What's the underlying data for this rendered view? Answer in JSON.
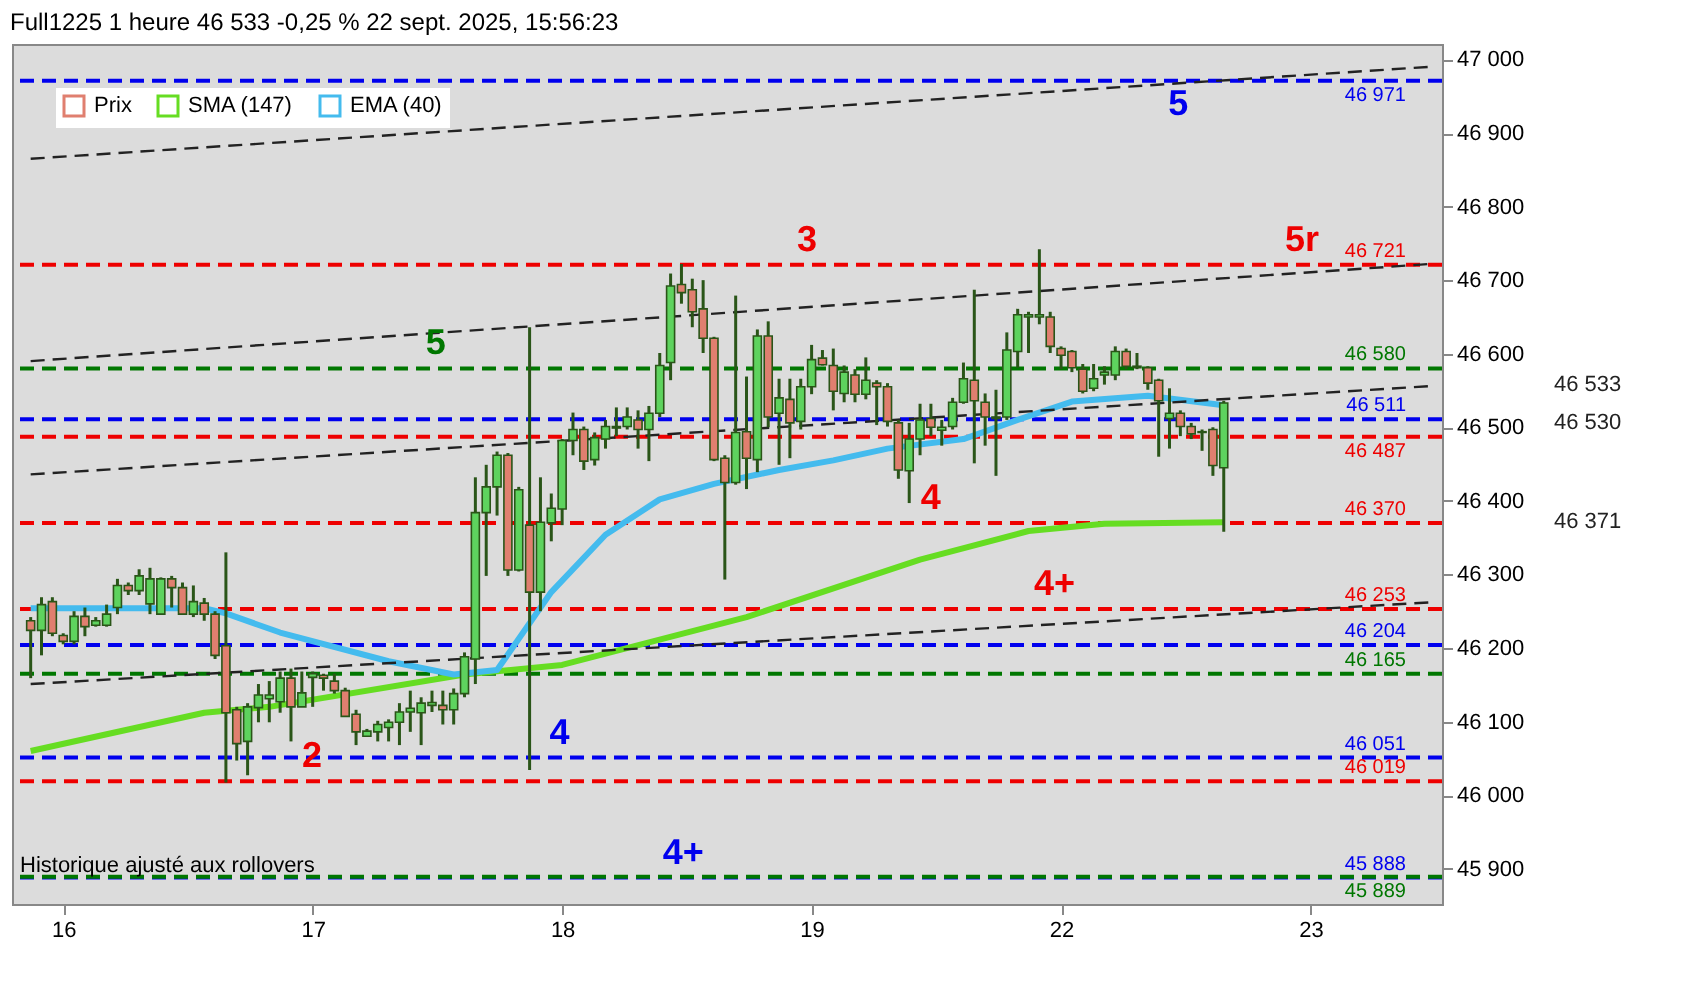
{
  "chart_data": {
    "type": "candlestick",
    "title": "Full1225 1 heure 46 533 -0,25 % 22 sept. 2025, 15:56:23",
    "categories": [
      null,
      null,
      null,
      "16",
      null,
      null,
      null,
      null,
      null,
      null,
      null,
      null,
      null,
      null,
      null,
      null,
      null,
      null,
      null,
      null,
      null,
      null,
      null,
      null,
      null,
      null,
      "17",
      null,
      null,
      null,
      null,
      null,
      null,
      null,
      null,
      null,
      null,
      null,
      null,
      null,
      null,
      null,
      null,
      null,
      null,
      null,
      null,
      null,
      null,
      "18",
      null,
      null,
      null,
      null,
      null,
      null,
      null,
      null,
      null,
      null,
      null,
      null,
      null,
      null,
      null,
      null,
      null,
      null,
      null,
      null,
      null,
      null,
      "19",
      null,
      null,
      null,
      null,
      null,
      null,
      null,
      null,
      null,
      null,
      null,
      null,
      null,
      null,
      null,
      null,
      null,
      null,
      null,
      null,
      null,
      null,
      "22",
      null,
      null,
      null,
      null,
      null,
      null,
      null,
      null,
      null,
      null,
      null,
      null,
      null,
      null,
      null,
      null,
      null,
      null,
      null,
      null,
      null,
      null,
      "23",
      null,
      null,
      null,
      null,
      null,
      null,
      null,
      null,
      null,
      null,
      null
    ],
    "ylim": [
      45852,
      47021
    ],
    "yticks": [
      {
        "value": 45900,
        "label": "45 900"
      },
      {
        "value": 46000,
        "label": "46 000"
      },
      {
        "value": 46100,
        "label": "46 100"
      },
      {
        "value": 46200,
        "label": "46 200"
      },
      {
        "value": 46300,
        "label": "46 300"
      },
      {
        "value": 46400,
        "label": "46 400"
      },
      {
        "value": 46500,
        "label": "46 500"
      },
      {
        "value": 46600,
        "label": "46 600"
      },
      {
        "value": 46700,
        "label": "46 700"
      },
      {
        "value": 46800,
        "label": "46 800"
      },
      {
        "value": 46900,
        "label": "46 900"
      },
      {
        "value": 47000,
        "label": "47 000"
      }
    ],
    "grid": false,
    "legend": "top left",
    "marker": "none",
    "series": [
      {
        "name": "Prix",
        "colors": [
          "#e07f6f",
          "#5ed35e",
          "#e07f6f",
          "#e07f6f",
          "#5ed35e",
          "#e07f6f",
          "#5ed35e",
          "#5ed35e",
          "#5ed35e",
          "#e07f6f",
          "#5ed35e",
          "#5ed35e",
          "#5ed35e",
          "#e07f6f",
          "#e07f6f",
          "#5ed35e",
          "#e07f6f",
          "#e07f6f",
          "#e07f6f",
          "#e07f6f",
          "#5ed35e",
          "#5ed35e",
          "#5ed35e",
          "#5ed35e",
          "#e07f6f",
          "#5ed35e",
          "#5ed35e",
          "#e07f6f",
          "#e07f6f",
          "#e07f6f",
          "#e07f6f",
          "#5ed35e",
          "#5ed35e",
          "#5ed35e",
          "#5ed35e",
          "#5ed35e",
          "#5ed35e",
          "#5ed35e",
          "#e07f6f",
          "#5ed35e",
          "#5ed35e",
          "#5ed35e",
          "#5ed35e",
          "#5ed35e",
          "#e07f6f",
          "#5ed35e",
          "#e07f6f",
          "#5ed35e",
          "#5ed35e",
          "#5ed35e",
          "#5ed35e",
          "#e07f6f",
          "#5ed35e",
          "#5ed35e",
          "#5ed35e",
          "#5ed35e",
          "#e07f6f",
          "#5ed35e",
          "#5ed35e",
          "#5ed35e",
          "#e07f6f",
          "#e07f6f",
          "#e07f6f",
          "#e07f6f",
          "#e07f6f",
          "#5ed35e",
          "#e07f6f",
          "#5ed35e",
          "#e07f6f",
          "#5ed35e",
          "#e07f6f",
          "#5ed35e",
          "#5ed35e",
          "#e07f6f",
          "#e07f6f",
          "#5ed35e",
          "#e07f6f",
          "#5ed35e",
          "#e07f6f",
          "#e07f6f",
          "#e07f6f",
          "#5ed35e",
          "#5ed35e",
          "#e07f6f",
          "#5ed35e",
          "#5ed35e",
          "#5ed35e",
          "#e07f6f",
          "#e07f6f",
          "#e07f6f",
          "#5ed35e",
          "#5ed35e",
          "#5ed35e",
          "#5ed35e",
          "#e07f6f",
          "#e07f6f",
          "#e07f6f",
          "#e07f6f",
          "#5ed35e",
          "#5ed35e",
          "#5ed35e",
          "#e07f6f",
          "#e07f6f",
          "#e07f6f",
          "#e07f6f",
          "#5ed35e",
          "#e07f6f",
          "#e07f6f",
          "#e07f6f",
          "#e07f6f",
          "#5ed35e",
          null,
          null,
          null,
          null,
          null,
          null,
          null,
          null,
          null,
          null,
          null,
          null,
          null,
          null,
          null,
          null,
          null,
          null,
          null
        ],
        "ohlc": [
          [
            46237,
            46242,
            46159,
            46224
          ],
          [
            46224,
            46269,
            46190,
            46259
          ],
          [
            46263,
            46269,
            46216,
            46220
          ],
          [
            46217,
            46220,
            46205,
            46209
          ],
          [
            46209,
            46250,
            46205,
            46243
          ],
          [
            46243,
            46255,
            46216,
            46229
          ],
          [
            46231,
            46242,
            46229,
            46237
          ],
          [
            46231,
            46259,
            46229,
            46246
          ],
          [
            46255,
            46294,
            46246,
            46285
          ],
          [
            46285,
            46289,
            46272,
            46278
          ],
          [
            46278,
            46307,
            46272,
            46298
          ],
          [
            46260,
            46309,
            46246,
            46294
          ],
          [
            46246,
            46296,
            46246,
            46294
          ],
          [
            46294,
            46298,
            46255,
            46282
          ],
          [
            46282,
            46289,
            46246,
            46246
          ],
          [
            46246,
            46285,
            46242,
            46263
          ],
          [
            46261,
            46268,
            46237,
            46246
          ],
          [
            46246,
            46250,
            46185,
            46190
          ],
          [
            46203,
            46330,
            46017,
            46112
          ],
          [
            46116,
            46120,
            46047,
            46070
          ],
          [
            46073,
            46125,
            46027,
            46120
          ],
          [
            46119,
            46151,
            46099,
            46136
          ],
          [
            46131,
            46155,
            46099,
            46136
          ],
          [
            46127,
            46168,
            46112,
            46159
          ],
          [
            46159,
            46172,
            46073,
            46120
          ],
          [
            46120,
            46168,
            46120,
            46139
          ],
          [
            46160,
            46168,
            46120,
            46165
          ],
          [
            46163,
            46165,
            46142,
            46159
          ],
          [
            46155,
            46165,
            46138,
            46142
          ],
          [
            46142,
            46146,
            46107,
            46107
          ],
          [
            46110,
            46116,
            46068,
            46086
          ],
          [
            46080,
            46090,
            46080,
            46087
          ],
          [
            46086,
            46101,
            46073,
            46096
          ],
          [
            46092,
            46103,
            46073,
            46099
          ],
          [
            46099,
            46125,
            46068,
            46113
          ],
          [
            46113,
            46142,
            46086,
            46118
          ],
          [
            46112,
            46133,
            46068,
            46125
          ],
          [
            46122,
            46142,
            46113,
            46126
          ],
          [
            46122,
            46142,
            46096,
            46116
          ],
          [
            46116,
            46145,
            46096,
            46138
          ],
          [
            46138,
            46194,
            46133,
            46188
          ],
          [
            46185,
            46432,
            46151,
            46384
          ],
          [
            46384,
            46449,
            46298,
            46419
          ],
          [
            46419,
            46467,
            46380,
            46462
          ],
          [
            46462,
            46465,
            46298,
            46306
          ],
          [
            46306,
            46419,
            46304,
            46415
          ],
          [
            46367,
            46636,
            46034,
            46276
          ],
          [
            46276,
            46432,
            46250,
            46371
          ],
          [
            46370,
            46410,
            46345,
            46390
          ],
          [
            46389,
            46484,
            46367,
            46482
          ],
          [
            46482,
            46520,
            46462,
            46497
          ],
          [
            46497,
            46501,
            46442,
            46454
          ],
          [
            46456,
            46493,
            46448,
            46486
          ],
          [
            46484,
            46510,
            46471,
            46501
          ],
          [
            46499,
            46527,
            46488,
            46501
          ],
          [
            46501,
            46527,
            46497,
            46514
          ],
          [
            46510,
            46523,
            46471,
            46497
          ],
          [
            46497,
            46529,
            46454,
            46519
          ],
          [
            46519,
            46601,
            46514,
            46584
          ],
          [
            46588,
            46709,
            46564,
            46692
          ],
          [
            46694,
            46722,
            46668,
            46683
          ],
          [
            46687,
            46702,
            46636,
            46657
          ],
          [
            46661,
            46700,
            46601,
            46621
          ],
          [
            46621,
            46623,
            46454,
            46456
          ],
          [
            46458,
            46462,
            46293,
            46425
          ],
          [
            46425,
            46679,
            46422,
            46493
          ],
          [
            46494,
            46569,
            46416,
            46458
          ],
          [
            46456,
            46633,
            46439,
            46624
          ],
          [
            46624,
            46644,
            46500,
            46514
          ],
          [
            46519,
            46566,
            46449,
            46540
          ],
          [
            46538,
            46566,
            46458,
            46506
          ],
          [
            46508,
            46566,
            46497,
            46555
          ],
          [
            46555,
            46612,
            46545,
            46592
          ],
          [
            46594,
            46605,
            46584,
            46585
          ],
          [
            46584,
            46607,
            46523,
            46549
          ],
          [
            46546,
            46584,
            46534,
            46575
          ],
          [
            46571,
            46579,
            46534,
            46545
          ],
          [
            46545,
            46595,
            46538,
            46564
          ],
          [
            46560,
            46564,
            46503,
            46555
          ],
          [
            46555,
            46560,
            46501,
            46508
          ],
          [
            46506,
            46510,
            46430,
            46442
          ],
          [
            46441,
            46506,
            46397,
            46484
          ],
          [
            46484,
            46532,
            46462,
            46510
          ],
          [
            46512,
            46532,
            46488,
            46500
          ],
          [
            46496,
            46510,
            46475,
            46500
          ],
          [
            46501,
            46540,
            46497,
            46534
          ],
          [
            46534,
            46588,
            46532,
            46566
          ],
          [
            46564,
            46687,
            46451,
            46536
          ],
          [
            46534,
            46546,
            46475,
            46514
          ],
          [
            46514,
            46551,
            46434,
            46512
          ],
          [
            46514,
            46629,
            46510,
            46605
          ],
          [
            46603,
            46661,
            46581,
            46653
          ],
          [
            46650,
            46657,
            46601,
            46653
          ],
          [
            46650,
            46742,
            46640,
            46653
          ],
          [
            46650,
            46657,
            46601,
            46610
          ],
          [
            46607,
            46610,
            46579,
            46598
          ],
          [
            46603,
            46605,
            46575,
            46581
          ],
          [
            46579,
            46586,
            46546,
            46549
          ],
          [
            46553,
            46586,
            46549,
            46566
          ],
          [
            46571,
            46583,
            46558,
            46575
          ],
          [
            46571,
            46610,
            46564,
            46603
          ],
          [
            46603,
            46607,
            46579,
            46583
          ],
          [
            46583,
            46601,
            46579,
            46581
          ],
          [
            46581,
            46583,
            46551,
            46560
          ],
          [
            46564,
            46566,
            46460,
            46536
          ],
          [
            46512,
            46553,
            46471,
            46519
          ],
          [
            46519,
            46523,
            46488,
            46501
          ],
          [
            46501,
            46506,
            46484,
            46491
          ],
          [
            46494,
            46497,
            46468,
            46493
          ],
          [
            46497,
            46500,
            46434,
            46448
          ],
          [
            46445,
            46536,
            46358,
            46533
          ],
          null,
          null,
          null,
          null,
          null,
          null,
          null,
          null,
          null,
          null,
          null,
          null,
          null,
          null,
          null,
          null,
          null,
          null,
          null
        ]
      },
      {
        "name": "SMA (147)",
        "type": "line",
        "color": "#66dd22",
        "values": [
          46060,
          null,
          null,
          null,
          null,
          null,
          null,
          null,
          null,
          null,
          null,
          null,
          null,
          null,
          null,
          null,
          46112,
          null,
          null,
          null,
          null,
          null,
          46120,
          null,
          null,
          null,
          null,
          null,
          null,
          null,
          null,
          null,
          null,
          null,
          null,
          null,
          null,
          null,
          null,
          null,
          46164,
          null,
          null,
          null,
          null,
          null,
          null,
          null,
          null,
          46177,
          null,
          null,
          null,
          null,
          null,
          null,
          null,
          null,
          null,
          null,
          null,
          null,
          null,
          null,
          null,
          null,
          46242,
          null,
          null,
          null,
          null,
          null,
          null,
          null,
          null,
          null,
          null,
          null,
          null,
          null,
          null,
          null,
          46320,
          null,
          null,
          null,
          null,
          null,
          null,
          null,
          null,
          null,
          46359,
          null,
          null,
          null,
          null,
          null,
          null,
          46369,
          null,
          null,
          null,
          null,
          null,
          null,
          null,
          null,
          null,
          null,
          46371,
          null,
          null,
          null,
          null,
          null,
          null,
          null,
          null,
          null,
          null,
          null,
          null,
          null,
          null,
          null,
          null,
          null,
          null,
          null
        ]
      },
      {
        "name": "EMA (40)",
        "type": "line",
        "color": "#44bbee",
        "values": [
          46254,
          null,
          null,
          null,
          null,
          null,
          null,
          null,
          null,
          null,
          null,
          null,
          null,
          null,
          null,
          null,
          46254,
          null,
          46247,
          null,
          null,
          null,
          null,
          46221,
          null,
          null,
          null,
          null,
          null,
          null,
          null,
          null,
          null,
          46182,
          null,
          null,
          null,
          null,
          null,
          46164,
          null,
          null,
          null,
          46170,
          null,
          null,
          null,
          null,
          46276,
          null,
          null,
          null,
          null,
          46354,
          null,
          null,
          null,
          null,
          46402,
          null,
          null,
          null,
          null,
          46423,
          null,
          null,
          null,
          null,
          null,
          46442,
          null,
          null,
          null,
          null,
          46455,
          null,
          null,
          null,
          null,
          46471,
          null,
          null,
          null,
          null,
          null,
          null,
          46484,
          null,
          null,
          null,
          null,
          46510,
          null,
          null,
          null,
          null,
          46535,
          null,
          null,
          null,
          null,
          null,
          null,
          46543,
          null,
          null,
          null,
          null,
          null,
          null,
          46530,
          null,
          null,
          null,
          null,
          null,
          null,
          null,
          null,
          null,
          null,
          null,
          null,
          null,
          null,
          null,
          null,
          null,
          null,
          null
        ]
      },
      {
        "type": "line",
        "color": "#222222",
        "line_style": "dashed",
        "values": [
          46865,
          null,
          null,
          null,
          null,
          null,
          null,
          null,
          null,
          null,
          null,
          null,
          null,
          null,
          null,
          null,
          null,
          null,
          null,
          null,
          null,
          null,
          null,
          null,
          null,
          null,
          null,
          null,
          null,
          null,
          null,
          null,
          null,
          null,
          null,
          null,
          null,
          null,
          null,
          null,
          null,
          null,
          null,
          null,
          null,
          null,
          null,
          null,
          null,
          null,
          null,
          null,
          null,
          null,
          null,
          null,
          null,
          null,
          null,
          null,
          null,
          null,
          null,
          null,
          null,
          null,
          null,
          null,
          null,
          null,
          null,
          null,
          null,
          null,
          null,
          null,
          null,
          null,
          null,
          null,
          null,
          null,
          null,
          null,
          null,
          null,
          null,
          null,
          null,
          null,
          null,
          null,
          null,
          null,
          null,
          null,
          null,
          null,
          null,
          null,
          null,
          null,
          null,
          null,
          null,
          null,
          null,
          null,
          null,
          null,
          null,
          null,
          null,
          null,
          null,
          null,
          null,
          null,
          null,
          null,
          null,
          null,
          null,
          null,
          null,
          null,
          null,
          null,
          null,
          46990
        ]
      },
      {
        "type": "line",
        "color": "#222222",
        "line_style": "dashed",
        "values": [
          46590,
          null,
          null,
          null,
          null,
          null,
          null,
          null,
          null,
          null,
          null,
          null,
          null,
          null,
          null,
          null,
          null,
          null,
          null,
          null,
          null,
          null,
          null,
          null,
          null,
          null,
          null,
          null,
          null,
          null,
          null,
          null,
          null,
          null,
          null,
          null,
          null,
          null,
          null,
          null,
          null,
          null,
          null,
          null,
          null,
          null,
          null,
          null,
          null,
          null,
          null,
          null,
          null,
          null,
          null,
          null,
          null,
          null,
          null,
          null,
          null,
          null,
          null,
          null,
          null,
          null,
          null,
          null,
          null,
          null,
          null,
          null,
          null,
          null,
          null,
          null,
          null,
          null,
          null,
          null,
          null,
          null,
          null,
          null,
          null,
          null,
          null,
          null,
          null,
          null,
          null,
          null,
          null,
          null,
          null,
          null,
          null,
          null,
          null,
          null,
          null,
          null,
          null,
          null,
          null,
          null,
          null,
          null,
          null,
          null,
          null,
          null,
          null,
          null,
          null,
          null,
          null,
          null,
          null,
          null,
          null,
          null,
          null,
          null,
          null,
          null,
          null,
          null,
          null,
          46722
        ]
      },
      {
        "type": "line",
        "color": "#222222",
        "line_style": "dashed",
        "values": [
          46436,
          null,
          null,
          null,
          null,
          null,
          null,
          null,
          null,
          null,
          null,
          null,
          null,
          null,
          null,
          null,
          null,
          null,
          null,
          null,
          null,
          null,
          null,
          null,
          null,
          null,
          null,
          null,
          null,
          null,
          null,
          null,
          null,
          null,
          null,
          null,
          null,
          null,
          null,
          null,
          null,
          null,
          null,
          null,
          null,
          null,
          null,
          null,
          null,
          null,
          null,
          null,
          null,
          null,
          null,
          null,
          null,
          null,
          null,
          null,
          null,
          null,
          null,
          null,
          null,
          null,
          null,
          null,
          null,
          null,
          null,
          null,
          null,
          null,
          null,
          null,
          null,
          null,
          null,
          null,
          null,
          null,
          null,
          null,
          null,
          null,
          null,
          null,
          null,
          null,
          null,
          null,
          null,
          null,
          null,
          null,
          null,
          null,
          null,
          null,
          null,
          null,
          null,
          null,
          null,
          null,
          null,
          null,
          null,
          null,
          null,
          null,
          null,
          null,
          null,
          null,
          null,
          null,
          null,
          null,
          null,
          null,
          null,
          null,
          null,
          null,
          null,
          null,
          null,
          46556
        ]
      },
      {
        "type": "line",
        "color": "#222222",
        "line_style": "dashed",
        "values": [
          46151,
          null,
          null,
          null,
          null,
          null,
          null,
          null,
          null,
          null,
          null,
          null,
          null,
          null,
          null,
          null,
          null,
          null,
          null,
          null,
          null,
          null,
          null,
          null,
          null,
          null,
          null,
          null,
          null,
          null,
          null,
          null,
          null,
          null,
          null,
          null,
          null,
          null,
          null,
          null,
          null,
          null,
          null,
          null,
          null,
          null,
          null,
          null,
          null,
          null,
          null,
          null,
          null,
          null,
          null,
          null,
          null,
          null,
          null,
          null,
          null,
          null,
          null,
          null,
          null,
          null,
          null,
          null,
          null,
          null,
          null,
          null,
          null,
          null,
          null,
          null,
          null,
          null,
          null,
          null,
          null,
          null,
          null,
          null,
          null,
          null,
          null,
          null,
          null,
          null,
          null,
          null,
          null,
          null,
          null,
          null,
          null,
          null,
          null,
          null,
          null,
          null,
          null,
          null,
          null,
          null,
          null,
          null,
          null,
          null,
          null,
          null,
          null,
          null,
          null,
          null,
          null,
          null,
          null,
          null,
          null,
          null,
          null,
          null,
          null,
          null,
          null,
          null,
          null,
          46262
        ]
      }
    ],
    "ref_lines": [
      {
        "axis": "y",
        "value": 46971,
        "label": "46 971",
        "color": "#0000ee",
        "line_style": "dashed"
      },
      {
        "axis": "y",
        "value": 46721,
        "label": "46 721",
        "color": "#ee0000",
        "line_style": "dashed"
      },
      {
        "axis": "y",
        "value": 46580,
        "label": "46 580",
        "color": "#007700",
        "line_style": "dashed"
      },
      {
        "axis": "y",
        "value": 46511,
        "label": "46 511",
        "color": "#0000ee",
        "line_style": "dashed"
      },
      {
        "axis": "y",
        "value": 46487,
        "label": "46 487",
        "color": "#ee0000",
        "line_style": "dashed"
      },
      {
        "axis": "y",
        "value": 46370,
        "label": "46 370",
        "color": "#ee0000",
        "line_style": "dashed"
      },
      {
        "axis": "y",
        "value": 46253,
        "label": "46 253",
        "color": "#ee0000",
        "line_style": "dashed"
      },
      {
        "axis": "y",
        "value": 46204,
        "label": "46 204",
        "color": "#0000ee",
        "line_style": "dashed"
      },
      {
        "axis": "y",
        "value": 46165,
        "label": "46 165",
        "color": "#007700",
        "line_style": "dashed"
      },
      {
        "axis": "y",
        "value": 46051,
        "label": "46 051",
        "color": "#0000ee",
        "line_style": "dashed"
      },
      {
        "axis": "y",
        "value": 46019,
        "label": "46 019",
        "color": "#ee0000",
        "line_style": "dashed"
      },
      {
        "axis": "y",
        "value": 45888,
        "label": "45 888",
        "color": "#0000ee",
        "line_style": "dashed"
      },
      {
        "axis": "y",
        "value": 45889,
        "label": "45 889",
        "color": "#007700",
        "line_style": "dashed"
      }
    ],
    "annotations": [
      {
        "text": "2",
        "y": 46019
      },
      {
        "text": "5",
        "y": 46580
      },
      {
        "text": "4",
        "y": 46051
      },
      {
        "text": "4+",
        "y": 45888
      },
      {
        "text": "3",
        "y": 46721
      },
      {
        "text": "4",
        "y": 46370
      },
      {
        "text": "4+",
        "y": 46253
      },
      {
        "text": "5",
        "y": 46971
      },
      {
        "text": "5r",
        "y": 46721
      },
      "46 533",
      "46 371",
      "46 530",
      "Historique ajusté aux rollovers"
    ]
  }
}
